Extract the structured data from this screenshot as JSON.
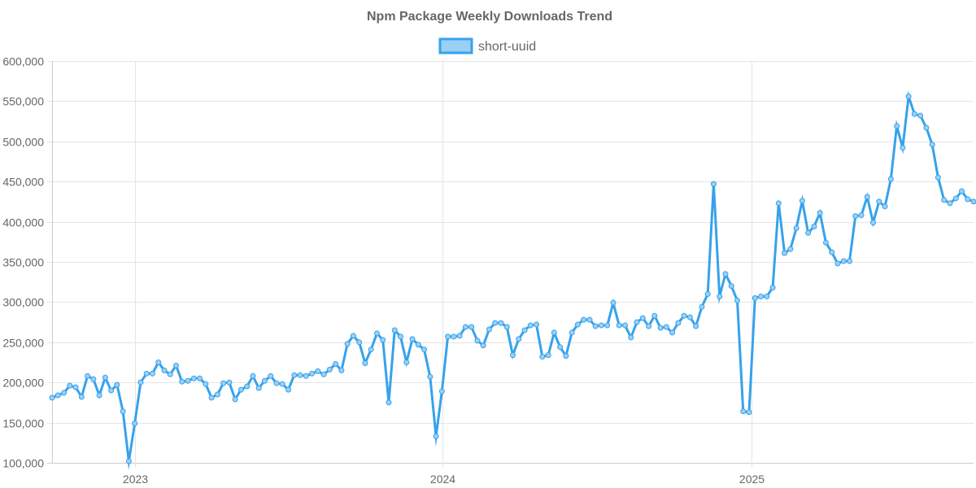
{
  "chart_data": {
    "type": "line",
    "title": "Npm Package Weekly Downloads Trend",
    "xlabel": "",
    "ylabel": "",
    "ylim": [
      100000,
      600000
    ],
    "y_ticks": [
      "100,000",
      "150,000",
      "200,000",
      "250,000",
      "300,000",
      "350,000",
      "400,000",
      "450,000",
      "500,000",
      "550,000",
      "600,000"
    ],
    "y_tick_values": [
      100000,
      150000,
      200000,
      250000,
      300000,
      350000,
      400000,
      450000,
      500000,
      550000,
      600000
    ],
    "x_ticks": [
      "2023",
      "2024",
      "2025"
    ],
    "x_tick_dates": [
      "2023-01-01",
      "2024-01-01",
      "2025-01-01"
    ],
    "xlim": [
      "2022-09-25",
      "2025-09-21"
    ],
    "grid": true,
    "legend_position": "top-center",
    "colors": {
      "line": "#36a2eb",
      "fill": "#9ad0f5",
      "text": "#666666",
      "grid": "#e5e5e5"
    },
    "x": [
      "2022-09-25",
      "2022-10-02",
      "2022-10-09",
      "2022-10-16",
      "2022-10-23",
      "2022-10-30",
      "2022-11-06",
      "2022-11-13",
      "2022-11-20",
      "2022-11-27",
      "2022-12-04",
      "2022-12-11",
      "2022-12-18",
      "2022-12-25",
      "2023-01-01",
      "2023-01-08",
      "2023-01-15",
      "2023-01-22",
      "2023-01-29",
      "2023-02-05",
      "2023-02-12",
      "2023-02-19",
      "2023-02-26",
      "2023-03-05",
      "2023-03-12",
      "2023-03-19",
      "2023-03-26",
      "2023-04-02",
      "2023-04-09",
      "2023-04-16",
      "2023-04-23",
      "2023-04-30",
      "2023-05-07",
      "2023-05-14",
      "2023-05-21",
      "2023-05-28",
      "2023-06-04",
      "2023-06-11",
      "2023-06-18",
      "2023-06-25",
      "2023-07-02",
      "2023-07-09",
      "2023-07-16",
      "2023-07-23",
      "2023-07-30",
      "2023-08-06",
      "2023-08-13",
      "2023-08-20",
      "2023-08-27",
      "2023-09-03",
      "2023-09-10",
      "2023-09-17",
      "2023-09-24",
      "2023-10-01",
      "2023-10-08",
      "2023-10-15",
      "2023-10-22",
      "2023-10-29",
      "2023-11-05",
      "2023-11-12",
      "2023-11-19",
      "2023-11-26",
      "2023-12-03",
      "2023-12-10",
      "2023-12-17",
      "2023-12-24",
      "2023-12-31",
      "2024-01-07",
      "2024-01-14",
      "2024-01-21",
      "2024-01-28",
      "2024-02-04",
      "2024-02-11",
      "2024-02-18",
      "2024-02-25",
      "2024-03-03",
      "2024-03-10",
      "2024-03-17",
      "2024-03-24",
      "2024-03-31",
      "2024-04-07",
      "2024-04-14",
      "2024-04-21",
      "2024-04-28",
      "2024-05-05",
      "2024-05-12",
      "2024-05-19",
      "2024-05-26",
      "2024-06-02",
      "2024-06-09",
      "2024-06-16",
      "2024-06-23",
      "2024-06-30",
      "2024-07-07",
      "2024-07-14",
      "2024-07-21",
      "2024-07-28",
      "2024-08-04",
      "2024-08-11",
      "2024-08-18",
      "2024-08-25",
      "2024-09-01",
      "2024-09-08",
      "2024-09-15",
      "2024-09-22",
      "2024-09-29",
      "2024-10-06",
      "2024-10-13",
      "2024-10-20",
      "2024-10-27",
      "2024-11-03",
      "2024-11-10",
      "2024-11-17",
      "2024-11-24",
      "2024-12-01",
      "2024-12-08",
      "2024-12-15",
      "2024-12-22",
      "2024-12-29",
      "2025-01-05",
      "2025-01-12",
      "2025-01-19",
      "2025-01-26",
      "2025-02-02",
      "2025-02-09",
      "2025-02-16",
      "2025-02-23",
      "2025-03-02",
      "2025-03-09",
      "2025-03-16",
      "2025-03-23",
      "2025-03-30",
      "2025-04-06",
      "2025-04-13",
      "2025-04-20",
      "2025-04-27",
      "2025-05-04",
      "2025-05-11",
      "2025-05-18",
      "2025-05-25",
      "2025-06-01",
      "2025-06-08",
      "2025-06-15",
      "2025-06-22",
      "2025-06-29",
      "2025-07-06",
      "2025-07-13",
      "2025-07-20",
      "2025-07-27",
      "2025-08-03",
      "2025-08-10",
      "2025-08-17",
      "2025-08-24",
      "2025-08-31",
      "2025-09-07",
      "2025-09-14",
      "2025-09-21"
    ],
    "series": [
      {
        "name": "short-uuid",
        "values": [
          181000,
          184000,
          187000,
          196000,
          194000,
          182000,
          208000,
          204000,
          184000,
          206000,
          190000,
          197000,
          164000,
          102000,
          149000,
          200000,
          211000,
          211000,
          225000,
          215000,
          210000,
          221000,
          201000,
          202000,
          205000,
          205000,
          198000,
          181000,
          185000,
          199000,
          200000,
          179000,
          191000,
          195000,
          208000,
          193000,
          202000,
          208000,
          199000,
          198000,
          191000,
          209000,
          209000,
          208000,
          211000,
          214000,
          210000,
          216000,
          223000,
          215000,
          248000,
          258000,
          250000,
          224000,
          241000,
          261000,
          253000,
          175000,
          265000,
          257000,
          225000,
          254000,
          247000,
          241000,
          207000,
          133000,
          189000,
          257000,
          257000,
          258000,
          269000,
          269000,
          252000,
          246000,
          266000,
          274000,
          274000,
          269000,
          234000,
          254000,
          265000,
          271000,
          272000,
          232000,
          234000,
          262000,
          244000,
          233000,
          262000,
          272000,
          278000,
          278000,
          270000,
          271000,
          271000,
          299000,
          271000,
          271000,
          256000,
          275000,
          280000,
          270000,
          283000,
          268000,
          269000,
          262000,
          274000,
          283000,
          281000,
          270000,
          294000,
          310000,
          447000,
          307000,
          335000,
          320000,
          302000,
          164000,
          163000,
          305000,
          307000,
          307000,
          318000,
          423000,
          361000,
          366000,
          392000,
          426000,
          386000,
          394000,
          411000,
          374000,
          362000,
          348000,
          351000,
          351000,
          407000,
          408000,
          431000,
          399000,
          425000,
          419000,
          453000,
          519000,
          492000,
          556000,
          534000,
          532000,
          517000,
          496000,
          455000,
          427000,
          423000,
          429000,
          438000,
          428000,
          425000
        ]
      }
    ]
  }
}
